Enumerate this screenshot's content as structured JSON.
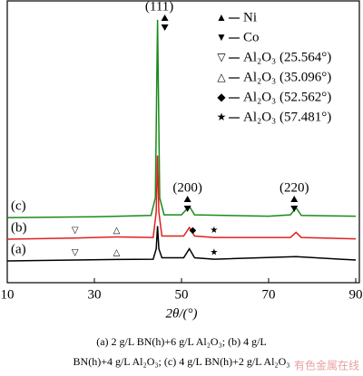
{
  "chart_data": {
    "type": "line",
    "x_label": "2θ/(°)",
    "xlim": [
      10,
      90
    ],
    "xticks": [
      10,
      30,
      50,
      70,
      90
    ],
    "ylim": [
      0,
      100
    ],
    "series": [
      {
        "name": "(c)",
        "color": "#1a8a1a",
        "x": [
          10,
          30,
          43,
          44,
          44.5,
          45,
          46,
          50,
          51.8,
          53,
          70,
          75,
          76.3,
          77.5,
          90
        ],
        "values": [
          23,
          23.3,
          23.8,
          30,
          93,
          30,
          24,
          24,
          27,
          24,
          23.5,
          24,
          26.5,
          23.8,
          23.5
        ]
      },
      {
        "name": "(b)",
        "color": "#e02020",
        "x": [
          10,
          25.5,
          35.1,
          43.5,
          44.2,
          44.5,
          44.8,
          45.5,
          50.5,
          51.8,
          53,
          57.5,
          75,
          76.3,
          77.5,
          90
        ],
        "values": [
          15.4,
          15.8,
          16.2,
          16,
          25,
          45,
          25,
          16.5,
          16.5,
          19.5,
          16.5,
          16,
          16,
          17.8,
          16,
          15.5
        ]
      },
      {
        "name": "(a)",
        "color": "#000000",
        "x": [
          10,
          35,
          43.5,
          44.2,
          44.5,
          44.8,
          45.5,
          50.5,
          51.8,
          53,
          57.5,
          76.3,
          90
        ],
        "values": [
          7.7,
          8.2,
          8.3,
          12,
          20,
          12,
          8.8,
          8.8,
          12,
          8.8,
          8.3,
          9.2,
          8
        ]
      }
    ],
    "peak_labels": [
      {
        "text": "(111)",
        "x": 44.5
      },
      {
        "text": "(200)",
        "x": 51.8
      },
      {
        "text": "(220)",
        "x": 76.3
      }
    ],
    "markers": [
      {
        "symbol": "▽",
        "x": 25.564,
        "series": 1
      },
      {
        "symbol": "△",
        "x": 35.096,
        "series": 1
      },
      {
        "symbol": "◆",
        "x": 52.562,
        "series": 1
      },
      {
        "symbol": "★",
        "x": 57.481,
        "series": 1
      },
      {
        "symbol": "▽",
        "x": 25.564,
        "series": 2
      },
      {
        "symbol": "△",
        "x": 35.096,
        "series": 2
      },
      {
        "symbol": "★",
        "x": 57.481,
        "series": 2
      }
    ],
    "legend": [
      {
        "symbol": "▲",
        "label": "Ni"
      },
      {
        "symbol": "▼",
        "label": "Co"
      },
      {
        "symbol": "▽",
        "label": "Al₂O₃ (25.564°)"
      },
      {
        "symbol": "△",
        "label": "Al₂O₃ (35.096°)"
      },
      {
        "symbol": "◆",
        "label": "Al₂O₃ (52.562°)"
      },
      {
        "symbol": "★",
        "label": "Al₂O₃ (57.481°)"
      }
    ],
    "caption": [
      "(a) 2 g/L BN(h)+6 g/L Al₂O₃; (b) 4 g/L",
      "BN(h)+4 g/L Al₂O₃; (c) 4 g/L BN(h)+2 g/L Al₂O₃"
    ],
    "watermark": "有色金属在线"
  }
}
